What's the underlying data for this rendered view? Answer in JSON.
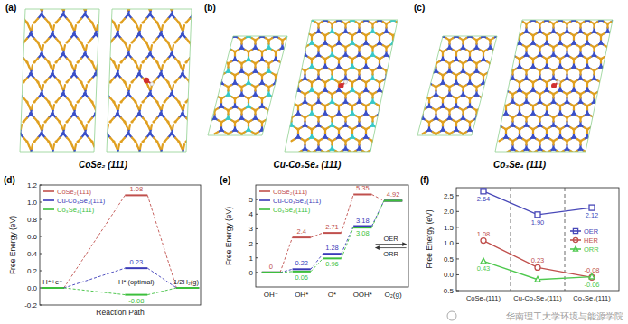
{
  "panels": [
    {
      "label": "(a)",
      "caption": "CoSe₂ (111)"
    },
    {
      "label": "(b)",
      "caption": "Cu-Co₃Se₄ (111)"
    },
    {
      "label": "(c)",
      "caption": "Co₃Se₄ (111)"
    }
  ],
  "chart_data": [
    {
      "type": "profile",
      "title": "(d)",
      "xlabel": "Reaction Path",
      "ylabel": "Free Energy (eV)",
      "categories": [
        "H⁺+e⁻",
        "H* (optimal)",
        "1/2H₂(g)"
      ],
      "ylim": [
        -0.2,
        1.2
      ],
      "yticks": [
        -0.2,
        {
          "value": 0,
          "label": "0.0"
        },
        0.2,
        0.4,
        0.6,
        0.8,
        {
          "value": 1,
          "label": "1.0"
        },
        1.2
      ],
      "legend": "upper left",
      "data_labels": true,
      "line_style": "dashed",
      "series": [
        {
          "name": "CoSe₂(111)",
          "color": "#c0504d",
          "values": [
            0,
            1.08,
            0
          ],
          "value_labels": [
            null,
            "1.08",
            null
          ]
        },
        {
          "name": "Cu-Co₃Se₄(111)",
          "color": "#3a3ab8",
          "values": [
            0,
            0.23,
            0
          ],
          "value_labels": [
            null,
            "0.23",
            null
          ]
        },
        {
          "name": "Co₃Se₄(111)",
          "color": "#3cbf3c",
          "values": [
            0,
            -0.08,
            0
          ],
          "value_labels": [
            null,
            "-0.08",
            null
          ]
        }
      ]
    },
    {
      "type": "profile",
      "title": "(e)",
      "ylabel": "Free Energy (eV)",
      "categories": [
        "OH⁻",
        "OH*",
        "O*",
        "OOH*",
        "O₂(g)"
      ],
      "ylim": [
        -1,
        6
      ],
      "yticks": [
        0,
        1,
        2,
        3,
        4,
        5
      ],
      "legend": "upper left",
      "data_labels": true,
      "line_style": "dashed",
      "annotations": [
        "OER",
        "ORR"
      ],
      "series": [
        {
          "name": "CoSe₂(111)",
          "color": "#c0504d",
          "values": [
            0,
            2.4,
            2.71,
            5.35,
            4.92
          ],
          "value_labels": [
            "0",
            "2.4",
            "2.71",
            "5.35",
            "4.92"
          ]
        },
        {
          "name": "Cu-Co₃Se₄(111)",
          "color": "#3a3ab8",
          "values": [
            0,
            0.22,
            1.28,
            3.18,
            4.92
          ],
          "value_labels": [
            null,
            "0.22",
            "1.28",
            "3.18",
            null
          ]
        },
        {
          "name": "Co₃Se₄(111)",
          "color": "#3cbf3c",
          "values": [
            0,
            0.06,
            0.96,
            3.08,
            4.92
          ],
          "value_labels": [
            null,
            "0.06",
            "0.96",
            "3.08",
            null
          ]
        }
      ]
    },
    {
      "type": "line",
      "title": "(f)",
      "ylabel": "Free Energy (eV)",
      "categories": [
        "CoSe₂(111)",
        "Cu-Co₃Se₄(111)",
        "Co₃Se₄(111)"
      ],
      "ylim": [
        -0.5,
        2.75
      ],
      "yticks": [
        -0.5,
        {
          "value": 0,
          "label": "0.0"
        },
        0.5,
        {
          "value": 1,
          "label": "1.0"
        },
        1.5,
        {
          "value": 2,
          "label": "2.0"
        },
        2.5
      ],
      "legend": "right",
      "data_labels": true,
      "series": [
        {
          "name": "OER",
          "color": "#4848b8",
          "marker": "square",
          "values": [
            2.64,
            1.9,
            2.12
          ],
          "value_labels": [
            "2.64",
            "1.90",
            "2.12"
          ]
        },
        {
          "name": "HER",
          "color": "#c0504d",
          "marker": "circle",
          "values": [
            1.08,
            0.23,
            -0.08
          ],
          "value_labels": [
            "1.08",
            "0.23",
            "-0.08"
          ]
        },
        {
          "name": "ORR",
          "color": "#4fc94f",
          "marker": "triangle",
          "values": [
            0.43,
            -0.15,
            -0.06
          ],
          "value_labels": [
            "0.43",
            null,
            "-0.06"
          ]
        }
      ]
    }
  ],
  "watermark": "华南理工大学环境与能源学院"
}
